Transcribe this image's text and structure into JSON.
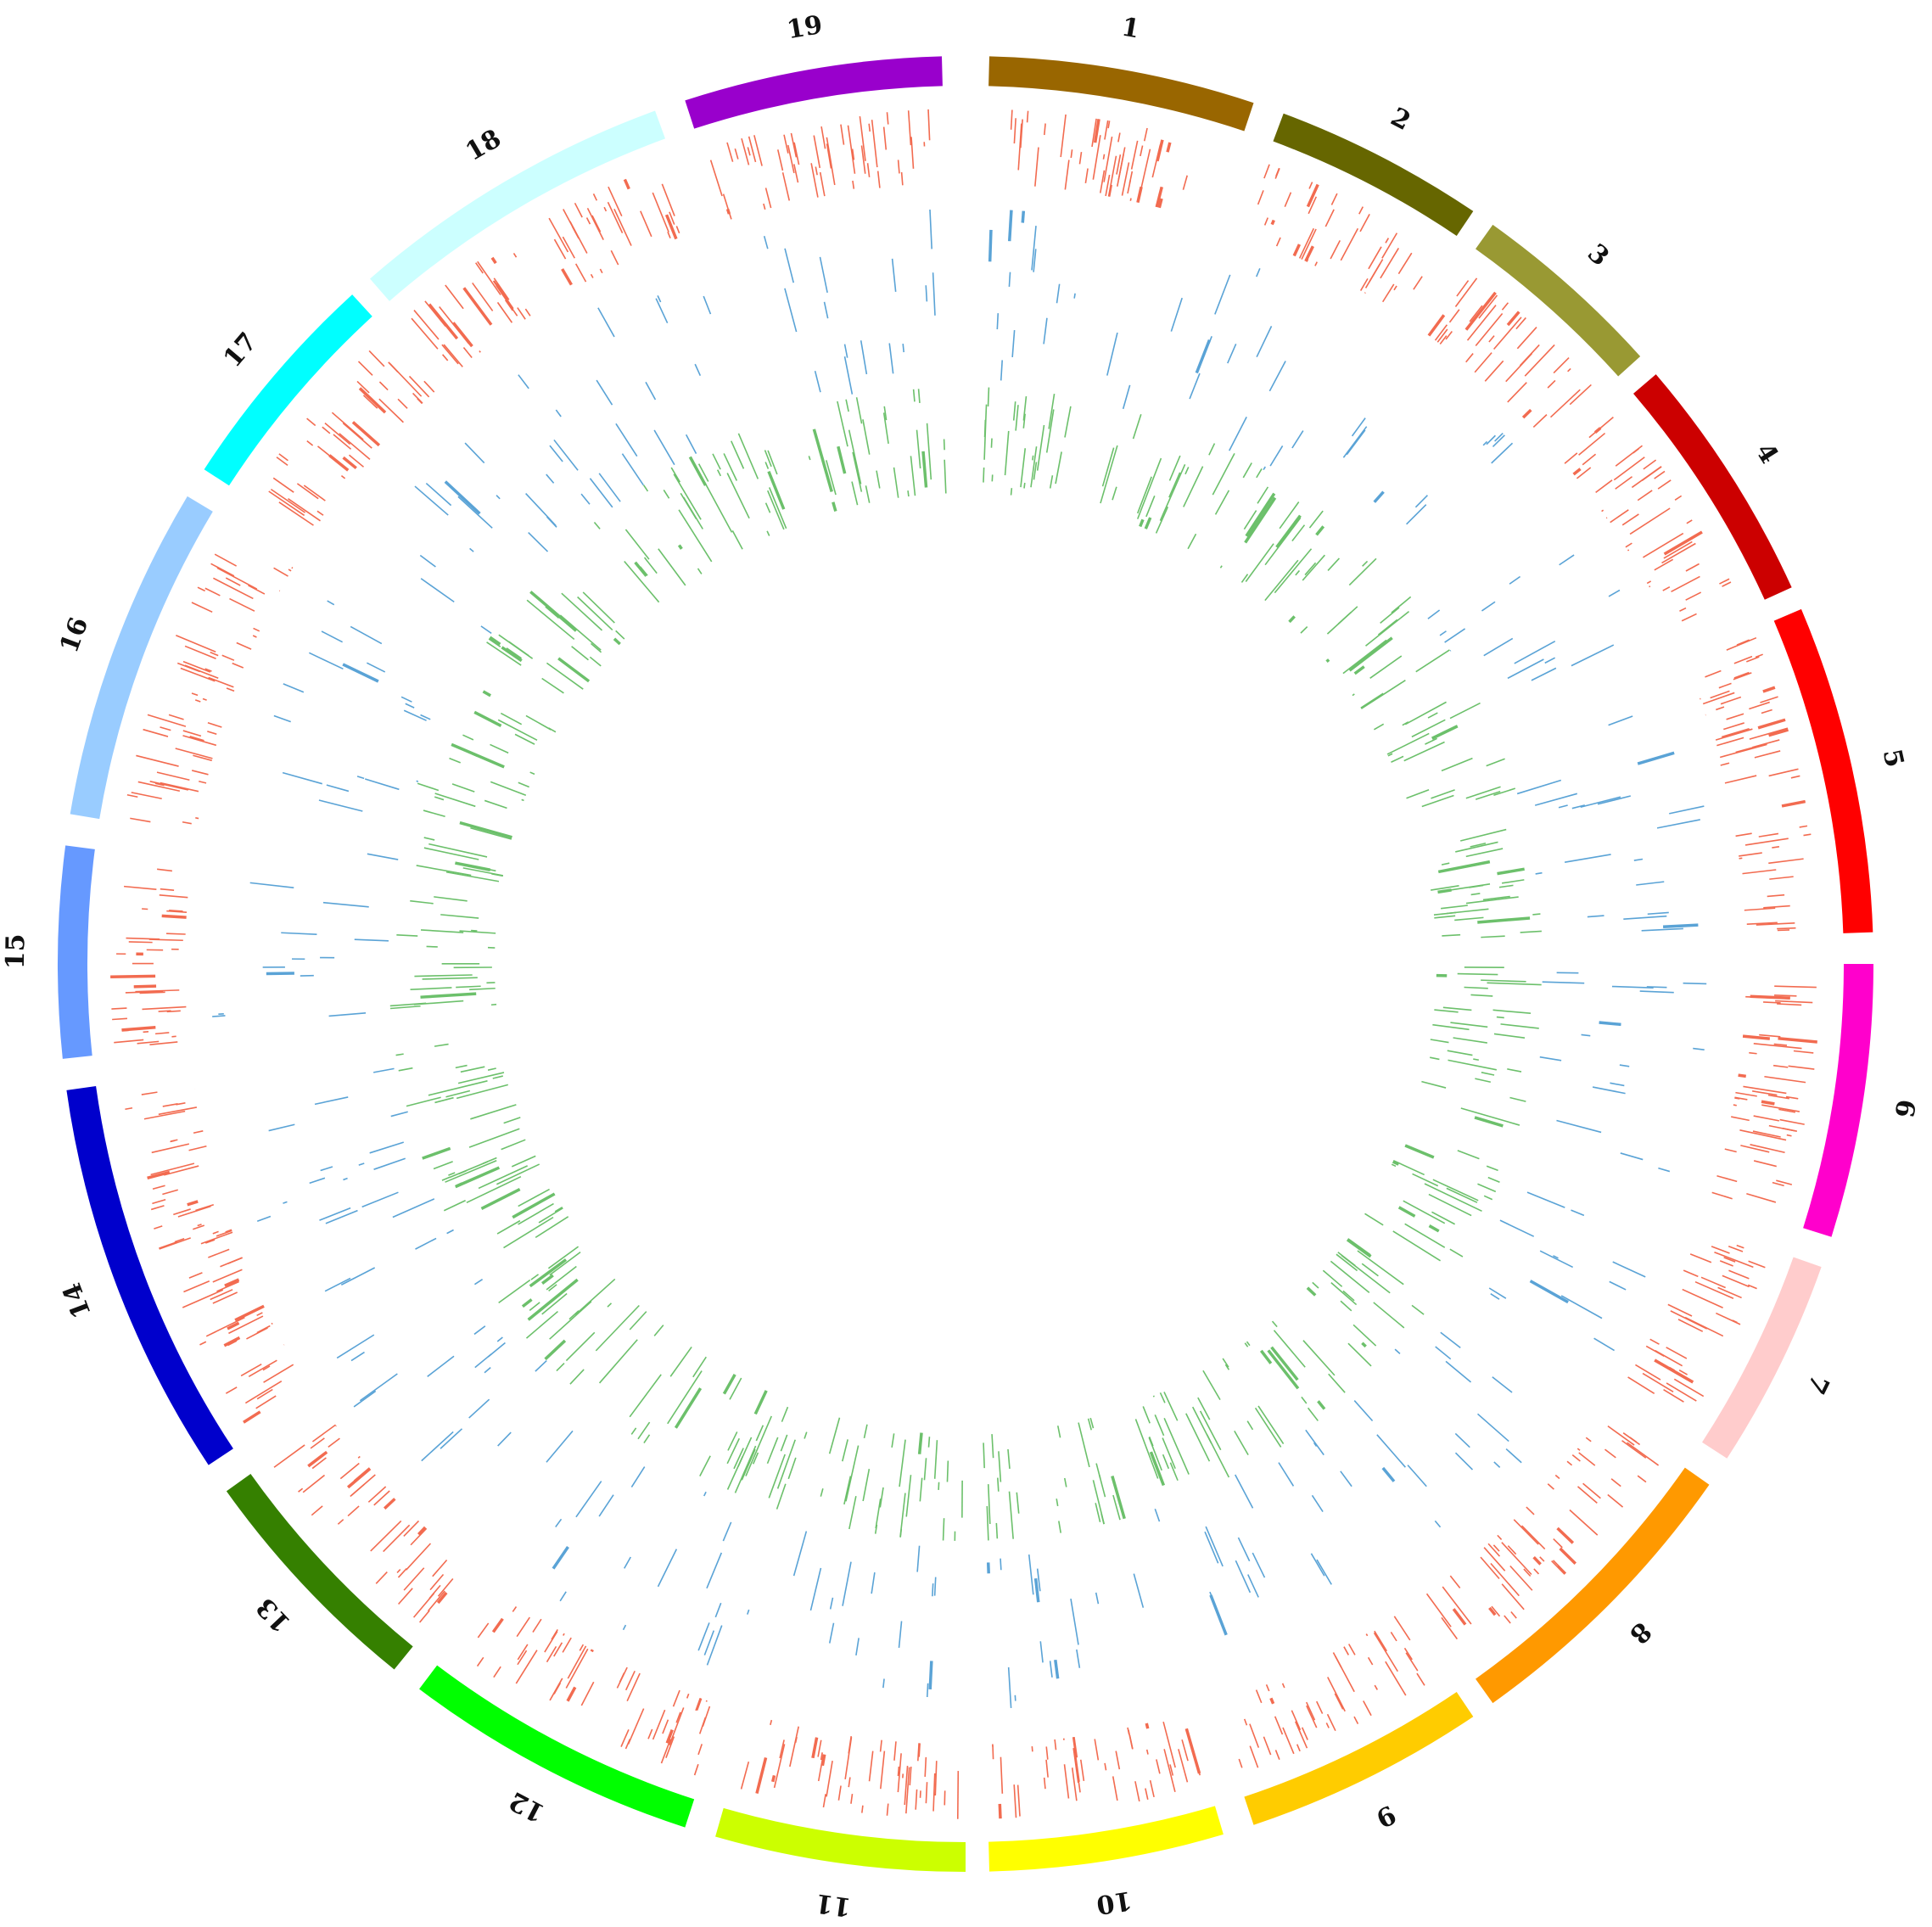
{
  "diagram": {
    "type": "circos",
    "chromosomes": [
      {
        "label": "1",
        "color": "#996600"
      },
      {
        "label": "2",
        "color": "#666600"
      },
      {
        "label": "3",
        "color": "#999933"
      },
      {
        "label": "4",
        "color": "#cc0000"
      },
      {
        "label": "5",
        "color": "#ff0000"
      },
      {
        "label": "6",
        "color": "#ff00cc"
      },
      {
        "label": "7",
        "color": "#ffcccc"
      },
      {
        "label": "8",
        "color": "#ff9900"
      },
      {
        "label": "9",
        "color": "#ffcc00"
      },
      {
        "label": "10",
        "color": "#ffff00"
      },
      {
        "label": "11",
        "color": "#ccff00"
      },
      {
        "label": "12",
        "color": "#00ff00"
      },
      {
        "label": "13",
        "color": "#358000"
      },
      {
        "label": "14",
        "color": "#0000cc"
      },
      {
        "label": "15",
        "color": "#6699ff"
      },
      {
        "label": "16",
        "color": "#99ccff"
      },
      {
        "label": "17",
        "color": "#00ffff"
      },
      {
        "label": "18",
        "color": "#ccffff"
      },
      {
        "label": "19",
        "color": "#9900cc"
      }
    ],
    "tracks": [
      {
        "color": "#f26b50"
      },
      {
        "color": "#5aa3d6"
      },
      {
        "color": "#6cc06b"
      }
    ]
  }
}
